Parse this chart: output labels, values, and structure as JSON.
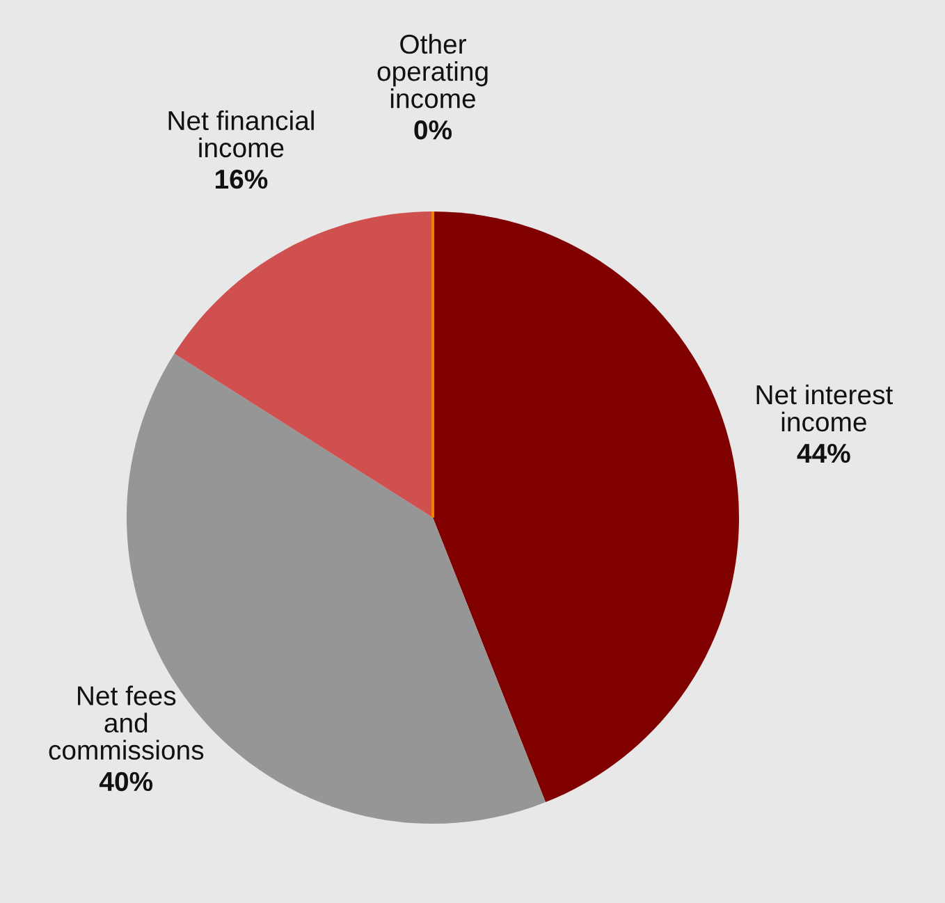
{
  "chart_data": {
    "type": "pie",
    "categories": [
      "Net interest\nincome",
      "Net fees\nand\ncommissions",
      "Net financial\nincome",
      "Other\noperating\nincome"
    ],
    "values": [
      44,
      40,
      16,
      0
    ],
    "colors": [
      "#800000",
      "#969696",
      "#d04f4f",
      "#f08000"
    ],
    "value_labels": [
      "44%",
      "40%",
      "16%",
      "0%"
    ]
  }
}
